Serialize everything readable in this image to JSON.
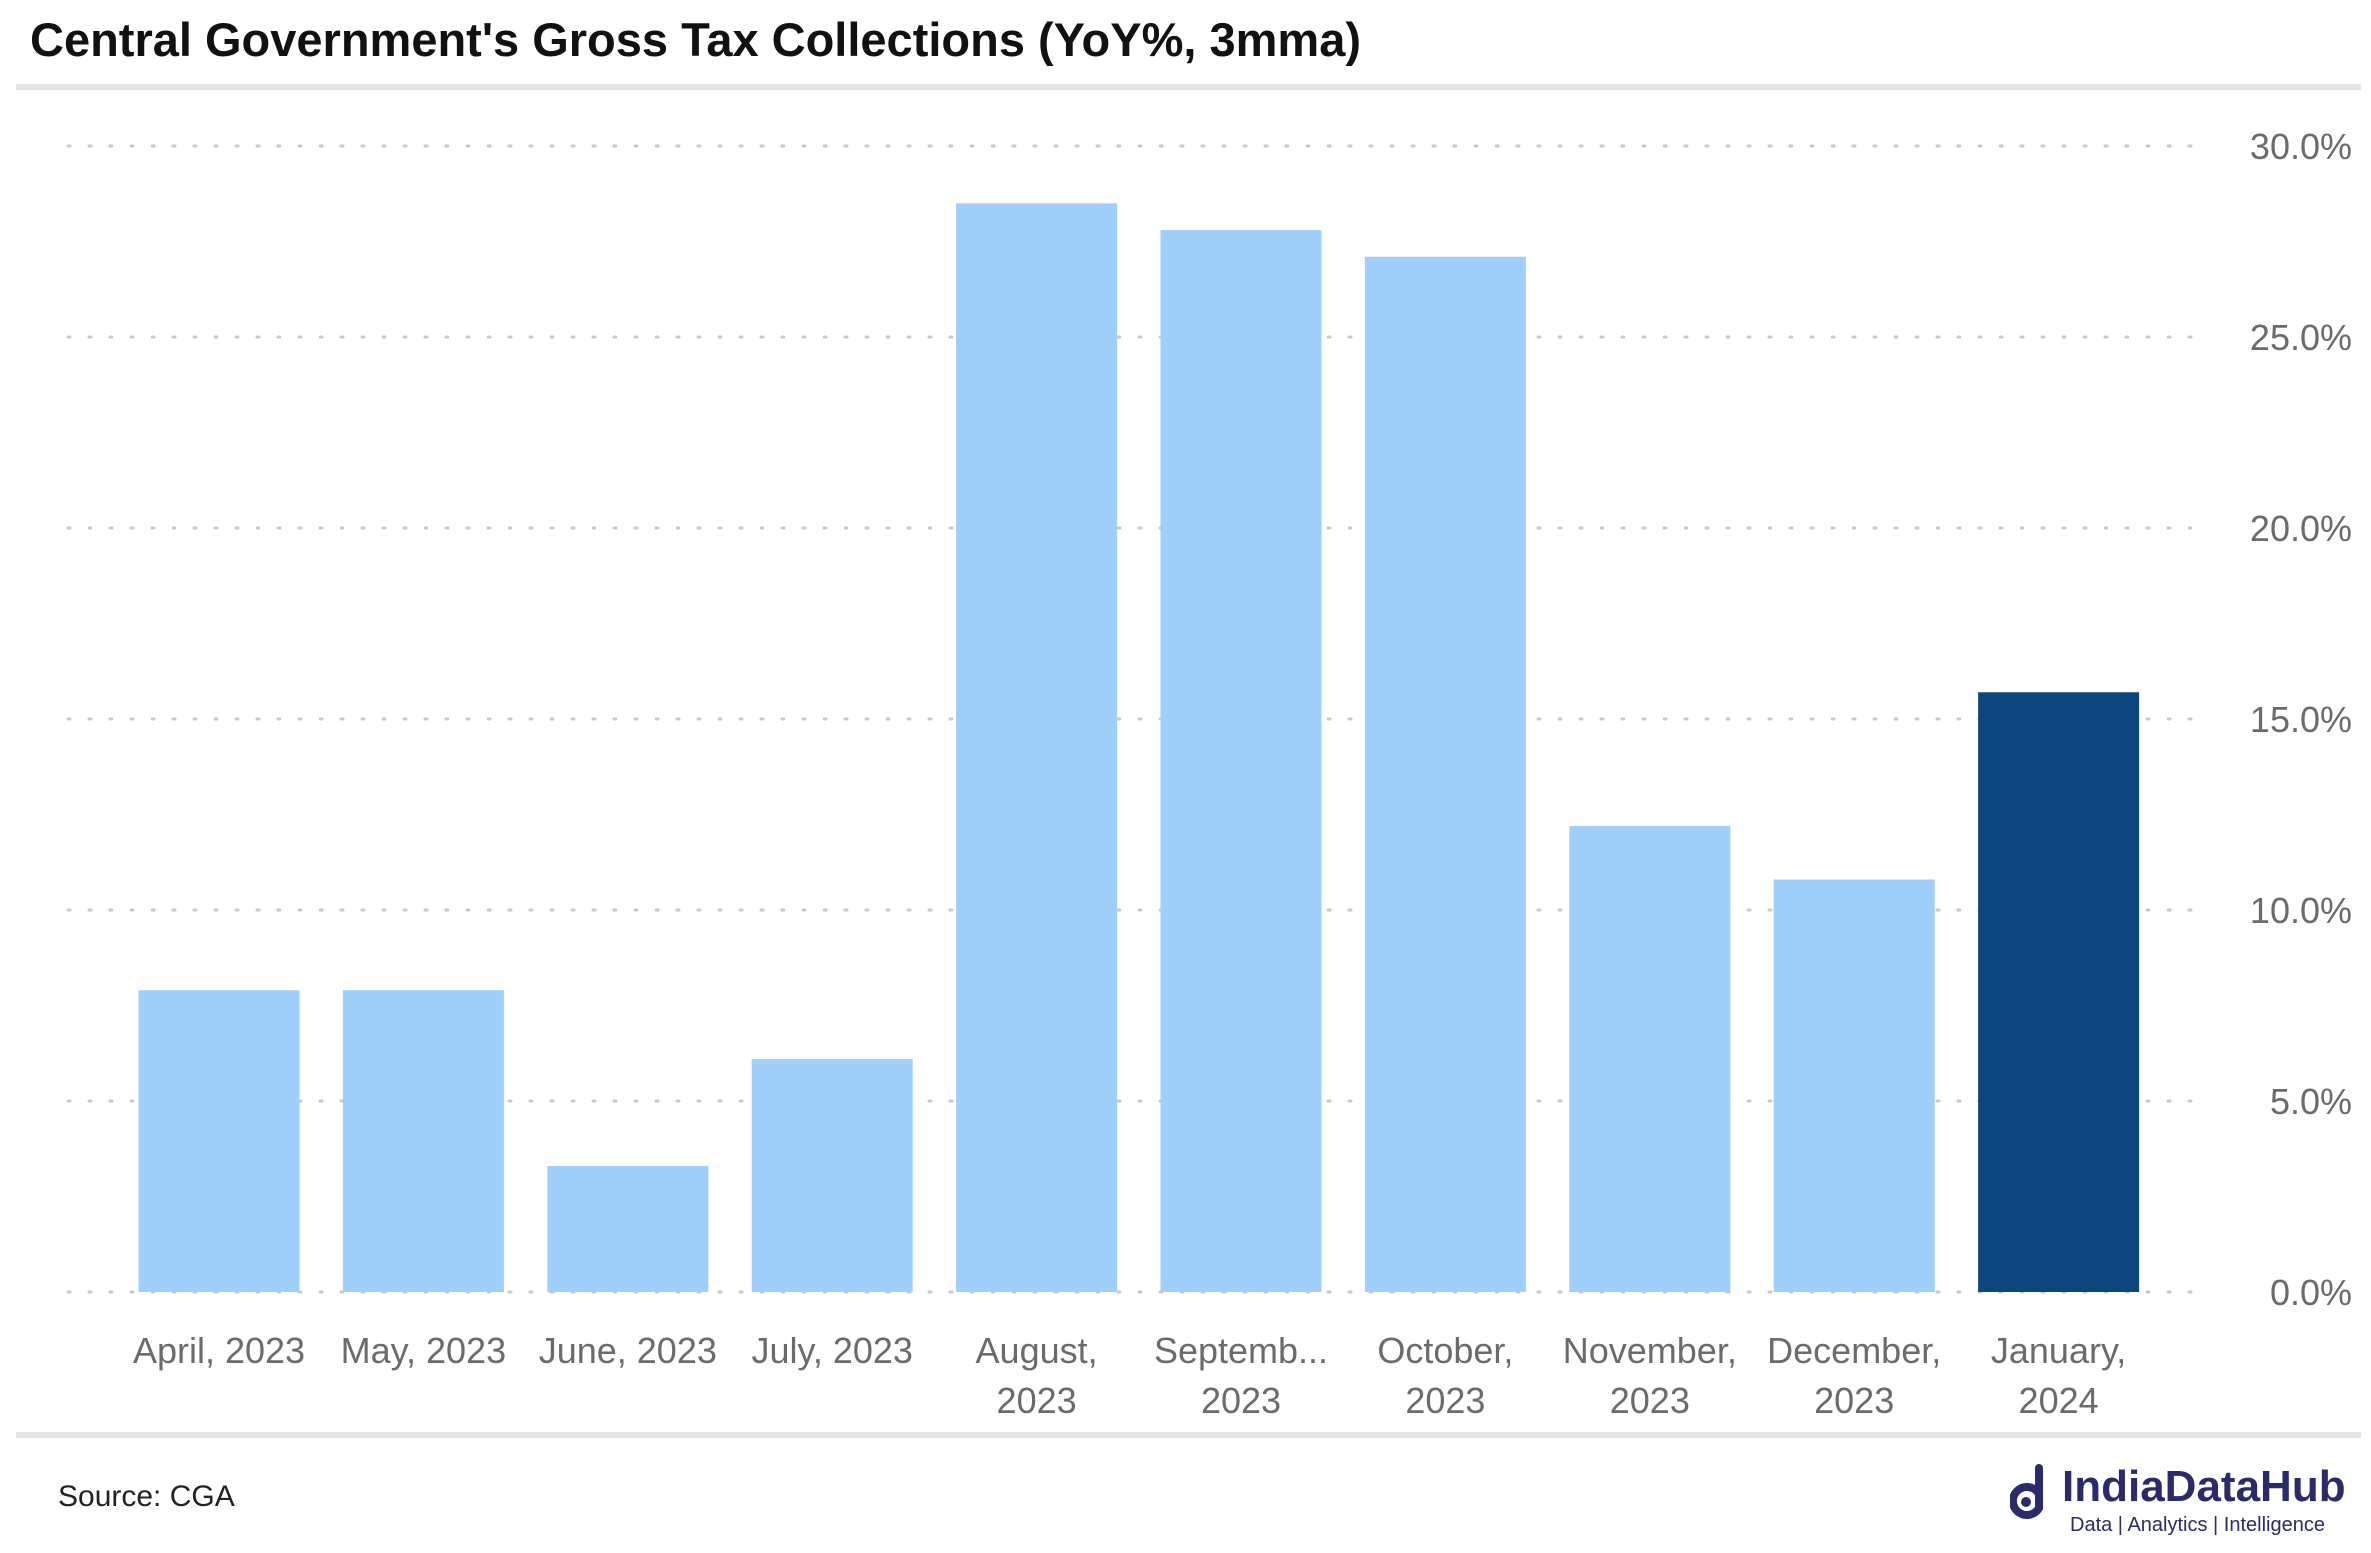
{
  "title": "Central Government's Gross Tax Collections (YoY%, 3mma)",
  "source": "Source: CGA",
  "logo": {
    "name": "IndiaDataHub",
    "tagline": "Data | Analytics | Intelligence",
    "color": "#2b2b6b"
  },
  "colors": {
    "bar": "#a1cffb",
    "highlight": "#0c467c",
    "grid": "#c8c8c8",
    "tick": "#6b6b6b"
  },
  "chart_data": {
    "type": "bar",
    "categories": [
      [
        "April, 2023"
      ],
      [
        "May, 2023"
      ],
      [
        "June, 2023"
      ],
      [
        "July, 2023"
      ],
      [
        "August,",
        "2023"
      ],
      [
        "Septemb...",
        "2023"
      ],
      [
        "October,",
        "2023"
      ],
      [
        "November,",
        "2023"
      ],
      [
        "December,",
        "2023"
      ],
      [
        "January,",
        "2024"
      ]
    ],
    "values": [
      7.9,
      7.9,
      3.3,
      6.1,
      28.5,
      27.8,
      27.1,
      12.2,
      10.8,
      15.7
    ],
    "highlight_index": 9,
    "ylim": [
      0,
      30
    ],
    "yticks": [
      "0.0%",
      "5.0%",
      "10.0%",
      "15.0%",
      "20.0%",
      "25.0%",
      "30.0%"
    ],
    "ytick_values": [
      0,
      5,
      10,
      15,
      20,
      25,
      30
    ],
    "y_axis_side": "right",
    "grid": true,
    "legend": "none",
    "xlabel": "",
    "ylabel": ""
  }
}
